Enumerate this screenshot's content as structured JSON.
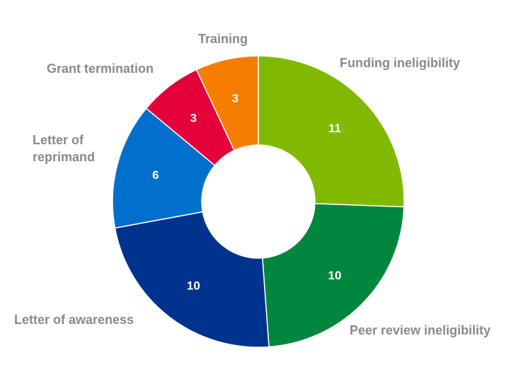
{
  "chart_data": {
    "type": "pie",
    "donut": true,
    "categories": [
      "Funding ineligibility",
      "Peer review ineligibility",
      "Letter of awareness",
      "Letter of reprimand",
      "Grant termination",
      "Training"
    ],
    "label_lines": [
      [
        "Funding ineligibility"
      ],
      [
        "Peer review ineligibility"
      ],
      [
        "Letter of awareness"
      ],
      [
        "Letter of",
        "reprimand"
      ],
      [
        "Grant termination"
      ],
      [
        "Training"
      ]
    ],
    "values": [
      11,
      10,
      10,
      6,
      3,
      3
    ],
    "colors": [
      "#7fba00",
      "#00873d",
      "#00338d",
      "#0070cc",
      "#e4003a",
      "#f77d00"
    ],
    "title": "",
    "legend": "none"
  }
}
